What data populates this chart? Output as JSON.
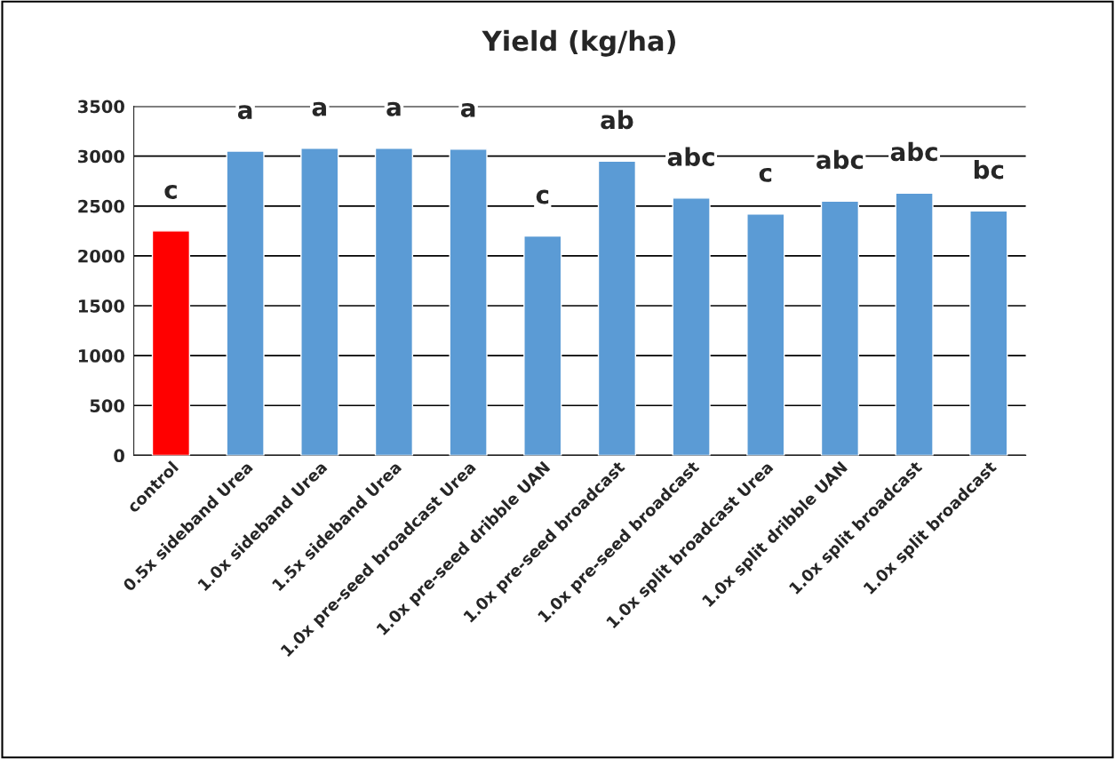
{
  "chart_data": {
    "type": "bar",
    "title": "Yield (kg/ha)",
    "categories": [
      "control",
      "0.5x sideband Urea",
      "1.0x sideband Urea",
      "1.5x sideband Urea",
      "1.0x pre-seed broadcast Urea",
      "1.0x pre-seed dribble UAN",
      "1.0x pre-seed broadcast",
      "1.0x pre-seed broadcast",
      "1.0x split broadcast Urea",
      "1.0x split dribble UAN",
      "1.0x split broadcast",
      "1.0x split broadcast"
    ],
    "values": [
      2250,
      3050,
      3080,
      3080,
      3070,
      2200,
      2950,
      2580,
      2420,
      2550,
      2630,
      2450
    ],
    "colors": [
      "#ff0000",
      "#5b9bd5",
      "#5b9bd5",
      "#5b9bd5",
      "#5b9bd5",
      "#5b9bd5",
      "#5b9bd5",
      "#5b9bd5",
      "#5b9bd5",
      "#5b9bd5",
      "#5b9bd5",
      "#5b9bd5"
    ],
    "value_labels": [
      "c",
      "a",
      "a",
      "a",
      "a",
      "c",
      "ab",
      "abc",
      "c",
      "abc",
      "abc",
      "bc"
    ],
    "ylim": [
      0,
      3500
    ],
    "yticks": [
      0,
      500,
      1000,
      1500,
      2000,
      2500,
      3000,
      3500
    ],
    "grid": "y"
  }
}
